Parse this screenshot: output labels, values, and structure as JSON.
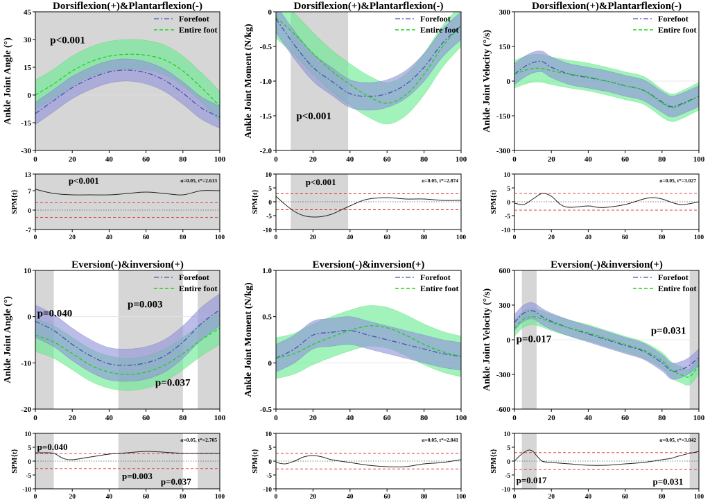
{
  "chart_data": [
    {
      "type": "line",
      "title": "Dorsiflexion(+)&Plantarflexion(-)",
      "xlabel": "",
      "ylabel": "Ankle Joint Angle (°)",
      "xlim": [
        0,
        100
      ],
      "ylim": [
        -30,
        45
      ],
      "xticks": [
        0,
        20,
        40,
        60,
        80,
        100
      ],
      "yticks": [
        -30,
        -15,
        0,
        15,
        30,
        45
      ],
      "shaded": [
        [
          0,
          100
        ]
      ],
      "pvalues": [
        {
          "text": "p<0.001",
          "x": 8,
          "y": 28
        }
      ],
      "legend": [
        "Forefoot",
        "Entire foot"
      ],
      "series": [
        {
          "name": "Forefoot",
          "x": [
            0,
            10,
            20,
            30,
            40,
            50,
            60,
            70,
            80,
            90,
            100
          ],
          "mean": [
            -10,
            -3,
            4,
            9,
            12.5,
            13.5,
            12,
            8,
            1,
            -7,
            -12
          ],
          "sd": 6
        },
        {
          "name": "Entire foot",
          "x": [
            0,
            10,
            20,
            30,
            40,
            50,
            60,
            70,
            80,
            90,
            100
          ],
          "mean": [
            0,
            6,
            13,
            18,
            21,
            22,
            21.5,
            19,
            13,
            4,
            -6
          ],
          "sd": 8
        }
      ]
    },
    {
      "type": "line",
      "title": "Dorsiflexion(+)&Plantarflexion(-)",
      "xlabel": "",
      "ylabel": "Ankle Joint Moment (N/kg)",
      "xlim": [
        0,
        100
      ],
      "ylim": [
        -2.0,
        0
      ],
      "xticks": [
        0,
        20,
        40,
        60,
        80,
        100
      ],
      "yticks": [
        -2.0,
        -1.5,
        -1.0,
        -0.5,
        0
      ],
      "shaded": [
        [
          8,
          39
        ]
      ],
      "pvalues": [
        {
          "text": "p<0.001",
          "x": 11,
          "y": -1.55
        }
      ],
      "legend": [
        "Forefoot",
        "Entire foot"
      ],
      "series": [
        {
          "name": "Forefoot",
          "x": [
            0,
            10,
            20,
            30,
            40,
            50,
            60,
            70,
            80,
            90,
            100
          ],
          "mean": [
            -0.1,
            -0.48,
            -0.8,
            -1.0,
            -1.18,
            -1.22,
            -1.18,
            -1.05,
            -0.8,
            -0.45,
            -0.2
          ],
          "sd": 0.2
        },
        {
          "name": "Entire foot",
          "x": [
            0,
            10,
            20,
            30,
            40,
            50,
            60,
            70,
            80,
            90,
            100
          ],
          "mean": [
            -0.08,
            -0.32,
            -0.6,
            -0.85,
            -1.05,
            -1.22,
            -1.32,
            -1.2,
            -0.9,
            -0.5,
            -0.2
          ],
          "sd": 0.3
        }
      ]
    },
    {
      "type": "line",
      "title": "Dorsiflexion(+)&Plantarflexion(-)",
      "xlabel": "",
      "ylabel": "Ankle Joint Velocity (°/s)",
      "xlim": [
        0,
        100
      ],
      "ylim": [
        -300,
        300
      ],
      "xticks": [
        0,
        20,
        40,
        60,
        80,
        100
      ],
      "yticks": [
        -300,
        -150,
        0,
        150,
        300
      ],
      "shaded": [],
      "pvalues": [],
      "legend": [
        "Forefoot",
        "Entire foot"
      ],
      "series": [
        {
          "name": "Forefoot",
          "x": [
            0,
            5,
            10,
            15,
            20,
            30,
            40,
            50,
            60,
            70,
            80,
            85,
            90,
            100
          ],
          "mean": [
            30,
            60,
            80,
            85,
            60,
            30,
            15,
            0,
            -20,
            -40,
            -90,
            -110,
            -100,
            -65
          ],
          "sd": 45
        },
        {
          "name": "Entire foot",
          "x": [
            0,
            5,
            10,
            15,
            20,
            30,
            40,
            50,
            60,
            70,
            80,
            85,
            90,
            100
          ],
          "mean": [
            30,
            45,
            55,
            55,
            45,
            30,
            18,
            0,
            -20,
            -40,
            -95,
            -115,
            -105,
            -65
          ],
          "sd": 60
        }
      ]
    },
    {
      "type": "line",
      "title": "",
      "xlabel": "",
      "ylabel": "SPM{t}",
      "xlim": [
        0,
        100
      ],
      "ylim": [
        -7,
        13
      ],
      "xticks": [
        0,
        20,
        40,
        60,
        80,
        100
      ],
      "yticks": [
        -7,
        0,
        7,
        13
      ],
      "shaded": [
        [
          0,
          100
        ]
      ],
      "threshold": 2.613,
      "stat_text": "α=0.05,   t*=2.613",
      "pvalues": [
        {
          "text": "p<0.001",
          "x": 18,
          "y": 9.5
        }
      ],
      "series": [
        {
          "name": "SPM{t}",
          "x": [
            0,
            10,
            20,
            30,
            40,
            50,
            60,
            70,
            80,
            90,
            100
          ],
          "values": [
            7.5,
            6,
            5.5,
            5.5,
            5.5,
            6,
            6.5,
            6,
            5.5,
            7,
            7
          ]
        }
      ]
    },
    {
      "type": "line",
      "title": "",
      "xlabel": "",
      "ylabel": "SPM{t}",
      "xlim": [
        0,
        100
      ],
      "ylim": [
        -10,
        10
      ],
      "xticks": [
        0,
        20,
        40,
        60,
        80,
        100
      ],
      "yticks": [
        -10,
        -5,
        0,
        5,
        10
      ],
      "shaded": [
        [
          8,
          39
        ]
      ],
      "threshold": 2.874,
      "stat_text": "α=0.05,   t*=2.874",
      "pvalues": [
        {
          "text": "p<0.001",
          "x": 16,
          "y": 6
        }
      ],
      "series": [
        {
          "name": "SPM{t}",
          "x": [
            0,
            5,
            10,
            15,
            20,
            25,
            30,
            35,
            40,
            45,
            50,
            60,
            70,
            80,
            90,
            100
          ],
          "values": [
            2,
            -1,
            -3.5,
            -5,
            -5.5,
            -5.3,
            -4.5,
            -3,
            -1.5,
            0,
            1,
            1.5,
            1,
            1,
            0.5,
            0.5
          ]
        }
      ]
    },
    {
      "type": "line",
      "title": "",
      "xlabel": "",
      "ylabel": "SPM{t}",
      "xlim": [
        0,
        100
      ],
      "ylim": [
        -10,
        10
      ],
      "xticks": [
        0,
        20,
        40,
        60,
        80,
        100
      ],
      "yticks": [
        -10,
        -5,
        0,
        5,
        10
      ],
      "shaded": [],
      "threshold": 3.027,
      "stat_text": "α=0.05,   t*=3.027",
      "pvalues": [],
      "series": [
        {
          "name": "SPM{t}",
          "x": [
            0,
            5,
            10,
            15,
            20,
            25,
            30,
            40,
            45,
            50,
            60,
            70,
            75,
            80,
            90,
            100
          ],
          "values": [
            -0.5,
            -1,
            1,
            3,
            2,
            -1,
            -2,
            -1.5,
            -2,
            -2,
            -1,
            1,
            1.5,
            1,
            -1,
            0
          ]
        }
      ]
    },
    {
      "type": "line",
      "title": "Eversion(-)&inversion(+)",
      "xlabel": "",
      "ylabel": "Ankle Joint Angle (°)",
      "xlim": [
        0,
        100
      ],
      "ylim": [
        -20,
        10
      ],
      "xticks": [
        0,
        20,
        40,
        60,
        80,
        100
      ],
      "yticks": [
        -20,
        -10,
        0,
        10
      ],
      "shaded": [
        [
          0,
          10
        ],
        [
          45,
          80
        ],
        [
          88,
          100
        ]
      ],
      "pvalues": [
        {
          "text": "p=0.040",
          "x": 1,
          "y": 0
        },
        {
          "text": "p=0.003",
          "x": 50,
          "y": 2
        },
        {
          "text": "p=0.037",
          "x": 65,
          "y": -15
        }
      ],
      "legend": [
        "Forefoot",
        "Entire foot"
      ],
      "series": [
        {
          "name": "Forefoot",
          "x": [
            0,
            10,
            20,
            30,
            40,
            50,
            60,
            70,
            80,
            90,
            100
          ],
          "mean": [
            -1,
            -3,
            -6,
            -8.5,
            -10.2,
            -10.5,
            -10,
            -8.5,
            -5.5,
            -1.5,
            1.5
          ],
          "sd": 3.5
        },
        {
          "name": "Entire foot",
          "x": [
            0,
            10,
            20,
            30,
            40,
            50,
            60,
            70,
            80,
            90,
            100
          ],
          "mean": [
            -4,
            -5.5,
            -8,
            -10.5,
            -12,
            -12.5,
            -12,
            -10.5,
            -8,
            -5,
            -2.5
          ],
          "sd": 3.5
        }
      ]
    },
    {
      "type": "line",
      "title": "Eversion(-)&inversion(+)",
      "xlabel": "",
      "ylabel": "Ankle Joint Moment (N/kg)",
      "xlim": [
        0,
        100
      ],
      "ylim": [
        -0.5,
        1.0
      ],
      "xticks": [
        0,
        20,
        40,
        60,
        80,
        100
      ],
      "yticks": [
        -0.5,
        0,
        0.5,
        1.0
      ],
      "shaded": [],
      "pvalues": [],
      "legend": [
        "Forefoot",
        "Entire foot"
      ],
      "series": [
        {
          "name": "Forefoot",
          "x": [
            0,
            10,
            20,
            30,
            40,
            50,
            60,
            70,
            80,
            90,
            100
          ],
          "mean": [
            0.05,
            0.15,
            0.3,
            0.33,
            0.35,
            0.3,
            0.25,
            0.2,
            0.15,
            0.1,
            0.07
          ],
          "sd": 0.15
        },
        {
          "name": "Entire foot",
          "x": [
            0,
            10,
            20,
            30,
            40,
            50,
            60,
            70,
            80,
            90,
            100
          ],
          "mean": [
            0.05,
            0.1,
            0.2,
            0.28,
            0.35,
            0.4,
            0.38,
            0.3,
            0.2,
            0.12,
            0.07
          ],
          "sd": 0.22
        }
      ]
    },
    {
      "type": "line",
      "title": "Eversion(-)&inversion(+)",
      "xlabel": "",
      "ylabel": "Ankle Joint Velocity (°/s)",
      "xlim": [
        0,
        100
      ],
      "ylim": [
        -600,
        600
      ],
      "xticks": [
        0,
        20,
        40,
        60,
        80,
        100
      ],
      "yticks": [
        -600,
        -300,
        0,
        300,
        600
      ],
      "shaded": [
        [
          4,
          12
        ],
        [
          95,
          100
        ]
      ],
      "pvalues": [
        {
          "text": "p=0.017",
          "x": 1,
          "y": -20
        },
        {
          "text": "p=0.031",
          "x": 74,
          "y": 50
        }
      ],
      "legend": [
        "Forefoot",
        "Entire foot"
      ],
      "series": [
        {
          "name": "Forefoot",
          "x": [
            0,
            5,
            10,
            15,
            20,
            30,
            40,
            50,
            60,
            70,
            80,
            85,
            90,
            95,
            100
          ],
          "mean": [
            150,
            230,
            250,
            200,
            160,
            100,
            50,
            0,
            -50,
            -100,
            -200,
            -270,
            -260,
            -220,
            -150
          ],
          "sd": 70
        },
        {
          "name": "Entire foot",
          "x": [
            0,
            5,
            10,
            15,
            20,
            30,
            40,
            50,
            60,
            70,
            80,
            85,
            90,
            95,
            100
          ],
          "mean": [
            100,
            180,
            200,
            180,
            150,
            100,
            60,
            10,
            -40,
            -90,
            -180,
            -260,
            -300,
            -320,
            -220
          ],
          "sd": 70
        }
      ]
    },
    {
      "type": "line",
      "title": "",
      "xlabel": "",
      "ylabel": "SPM{t}",
      "xlim": [
        0,
        100
      ],
      "ylim": [
        -10,
        10
      ],
      "xticks": [
        0,
        20,
        40,
        60,
        80,
        100
      ],
      "yticks": [
        -10,
        -5,
        0,
        5,
        10
      ],
      "shaded": [
        [
          0,
          10
        ],
        [
          45,
          80
        ],
        [
          88,
          100
        ]
      ],
      "threshold": 2.705,
      "stat_text": "α=0.05,   t*=2.705",
      "pvalues": [
        {
          "text": "p=0.040",
          "x": 1,
          "y": 4
        },
        {
          "text": "p=0.003",
          "x": 47,
          "y": -6.5
        },
        {
          "text": "p=0.037",
          "x": 68,
          "y": -8.5
        }
      ],
      "series": [
        {
          "name": "SPM{t}",
          "x": [
            0,
            5,
            10,
            15,
            20,
            30,
            40,
            50,
            60,
            70,
            80,
            90,
            100
          ],
          "values": [
            3,
            3,
            2.8,
            1,
            0.5,
            1.5,
            2.5,
            3,
            3.5,
            3.2,
            2.8,
            2.8,
            2.8
          ]
        }
      ]
    },
    {
      "type": "line",
      "title": "",
      "xlabel": "",
      "ylabel": "SPM{t}",
      "xlim": [
        0,
        100
      ],
      "ylim": [
        -10,
        10
      ],
      "xticks": [
        0,
        20,
        40,
        60,
        80,
        100
      ],
      "yticks": [
        -10,
        -5,
        0,
        5,
        10
      ],
      "shaded": [],
      "threshold": 2.841,
      "stat_text": "α=0.05,   t*=2.841",
      "pvalues": [],
      "series": [
        {
          "name": "SPM{t}",
          "x": [
            0,
            5,
            10,
            15,
            20,
            25,
            30,
            40,
            50,
            60,
            70,
            80,
            90,
            100
          ],
          "values": [
            -0.5,
            -1,
            0,
            1.5,
            2,
            1.5,
            0.5,
            -0.5,
            -1.5,
            -2,
            -2,
            -1,
            -0.5,
            0.5
          ]
        }
      ]
    },
    {
      "type": "line",
      "title": "",
      "xlabel": "",
      "ylabel": "SPM{t}",
      "xlim": [
        0,
        100
      ],
      "ylim": [
        -10,
        10
      ],
      "xticks": [
        0,
        20,
        40,
        60,
        80,
        100
      ],
      "yticks": [
        -10,
        -5,
        0,
        5,
        10
      ],
      "shaded": [
        [
          4,
          12
        ],
        [
          95,
          100
        ]
      ],
      "threshold": 3.042,
      "stat_text": "α=0.05,   t*=3.042",
      "pvalues": [
        {
          "text": "p=0.017",
          "x": 1,
          "y": -8
        },
        {
          "text": "p=0.031",
          "x": 75,
          "y": -8.5
        }
      ],
      "series": [
        {
          "name": "SPM{t}",
          "x": [
            0,
            3,
            6,
            8,
            10,
            12,
            15,
            20,
            30,
            40,
            50,
            60,
            70,
            80,
            85,
            90,
            100
          ],
          "values": [
            0,
            2,
            3.5,
            4,
            3.5,
            2,
            0,
            -0.5,
            -1,
            -1.5,
            -1.5,
            -1,
            -0.5,
            0.5,
            1,
            2,
            3.5
          ]
        }
      ]
    }
  ],
  "colors": {
    "forefoot_line": "#4b4fb0",
    "forefoot_band": "#8f8fdb",
    "entire_line": "#1bd31b",
    "entire_band": "#63eb8e",
    "spm_line": "#222222",
    "threshold": "#e02a2a",
    "shade": "#d6d6d6"
  }
}
